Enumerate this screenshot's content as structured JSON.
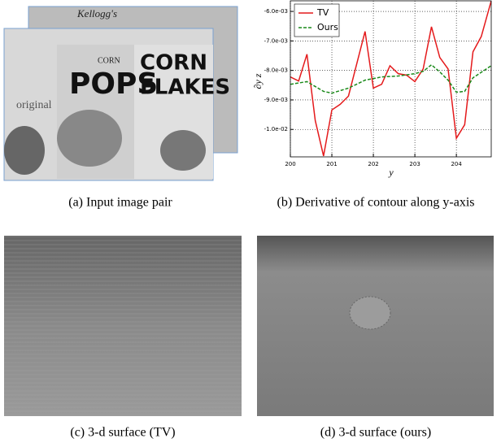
{
  "captions": [
    "(a)  Input image pair",
    "(b)  Derivative of contour along y-axis",
    "(c)  3-d surface (TV)",
    "(d)  3-d surface (ours)"
  ],
  "image_text": [
    "Kellogg's",
    "CORN",
    "POPS",
    "CORN",
    "FLAKES",
    "original"
  ],
  "chart_data": {
    "type": "line",
    "xlabel": "y",
    "ylabel": "∂y z",
    "xlim": [
      200,
      204.84
    ],
    "ylim": [
      -0.01093,
      -0.00564
    ],
    "xticks": [
      200,
      201,
      202,
      203,
      204
    ],
    "yticks": [
      {
        "value": -0.006,
        "label": "-6.0e-03"
      },
      {
        "value": -0.007,
        "label": "-7.0e-03"
      },
      {
        "value": -0.008,
        "label": "-8.0e-03"
      },
      {
        "value": -0.009,
        "label": "-9.0e-03"
      },
      {
        "value": -0.01,
        "label": "-1.0e-02"
      }
    ],
    "grid": true,
    "legend": "upper left",
    "series": [
      {
        "name": "TV",
        "color": "#e41a1c",
        "dash": false,
        "x": [
          200.0,
          200.2,
          200.4,
          200.6,
          200.8,
          201.0,
          201.2,
          201.4,
          201.8,
          202.0,
          202.2,
          202.4,
          202.6,
          202.8,
          203.0,
          203.2,
          203.4,
          203.6,
          203.8,
          204.0,
          204.2,
          204.4,
          204.6,
          204.84
        ],
        "values": [
          -0.00822,
          -0.00836,
          -0.00745,
          -0.0097,
          -0.0109,
          -0.00934,
          -0.00915,
          -0.00887,
          -0.00668,
          -0.0086,
          -0.00847,
          -0.00784,
          -0.00811,
          -0.00816,
          -0.00838,
          -0.00795,
          -0.00652,
          -0.00756,
          -0.00795,
          -0.0103,
          -0.00984,
          -0.00737,
          -0.00685,
          -0.00564
        ]
      },
      {
        "name": "Ours",
        "color": "#1a8a1a",
        "dash": true,
        "x": [
          200.0,
          200.4,
          200.8,
          201.0,
          201.4,
          201.8,
          202.2,
          202.6,
          203.0,
          203.2,
          203.4,
          203.6,
          203.8,
          204.0,
          204.2,
          204.4,
          204.84
        ],
        "values": [
          -0.00847,
          -0.00838,
          -0.00871,
          -0.00877,
          -0.0086,
          -0.00833,
          -0.00822,
          -0.00819,
          -0.00811,
          -0.00803,
          -0.00781,
          -0.00805,
          -0.00833,
          -0.00874,
          -0.00871,
          -0.00825,
          -0.00784
        ]
      }
    ]
  }
}
